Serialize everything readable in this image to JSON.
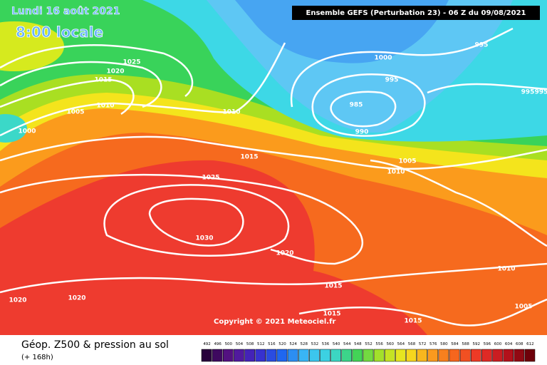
{
  "header": {
    "date": "Lundi 16 août 2021",
    "time": "8:00 locale",
    "model": "Ensemble GEFS  (Perturbation 23)  -  06 Z du 09/08/2021"
  },
  "isobar_labels": [
    1025,
    1020,
    1015,
    1010,
    1005,
    1000,
    1010,
    1015,
    1025,
    1030,
    1020,
    1020,
    1020,
    1015,
    1015,
    1015,
    1010,
    1005,
    1010,
    1005,
    990,
    985,
    995,
    1000,
    995,
    995,
    995
  ],
  "copyright": "Copyright © 2021 Meteociel.fr",
  "footer": {
    "title": "Géop. Z500 & pression au sol",
    "lead": "(+ 168h)"
  },
  "legend": {
    "ticks": [
      492,
      496,
      500,
      504,
      508,
      512,
      516,
      520,
      524,
      528,
      532,
      536,
      540,
      544,
      548,
      552,
      556,
      560,
      564,
      568,
      572,
      576,
      580,
      584,
      588,
      592,
      596,
      600,
      604,
      608,
      612
    ]
  }
}
